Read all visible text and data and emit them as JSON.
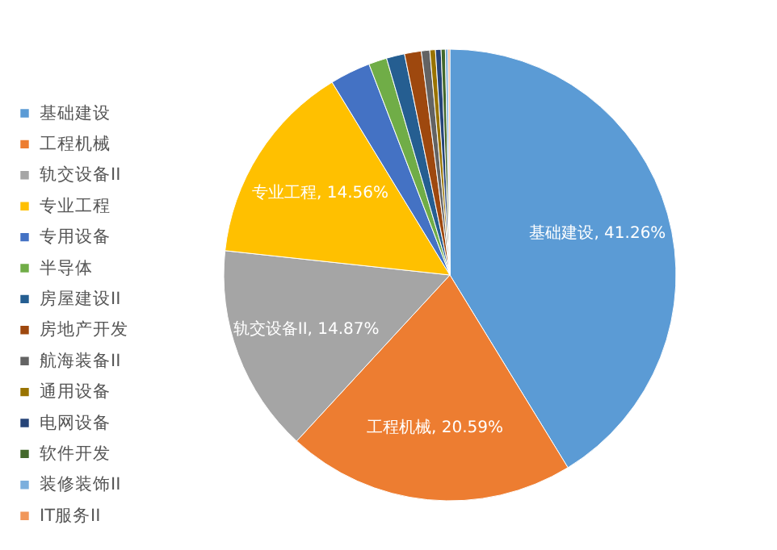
{
  "chart_data": {
    "type": "pie",
    "categories": [
      "基础建设",
      "工程机械",
      "轨交设备II",
      "专业工程",
      "专用设备",
      "半导体",
      "房屋建设II",
      "房地产开发",
      "航海装备II",
      "通用设备",
      "电网设备",
      "软件开发",
      "装修装饰II",
      "IT服务II"
    ],
    "values": [
      41.26,
      20.59,
      14.87,
      14.56,
      2.9,
      1.3,
      1.3,
      1.2,
      0.6,
      0.4,
      0.4,
      0.3,
      0.2,
      0.12
    ],
    "colors": [
      "#5b9bd5",
      "#ed7d31",
      "#a5a5a5",
      "#ffc000",
      "#4472c4",
      "#70ad47",
      "#255e91",
      "#9e480e",
      "#636363",
      "#997300",
      "#264478",
      "#43682b",
      "#7cafdd",
      "#f1975a"
    ],
    "value_labels": [
      "基础建设, 41.26%",
      "工程机械, 20.59%",
      "轨交设备II, 14.87%",
      "专业工程, 14.56%",
      null,
      null,
      null,
      null,
      null,
      null,
      null,
      null,
      null,
      null
    ],
    "legend": "left"
  }
}
